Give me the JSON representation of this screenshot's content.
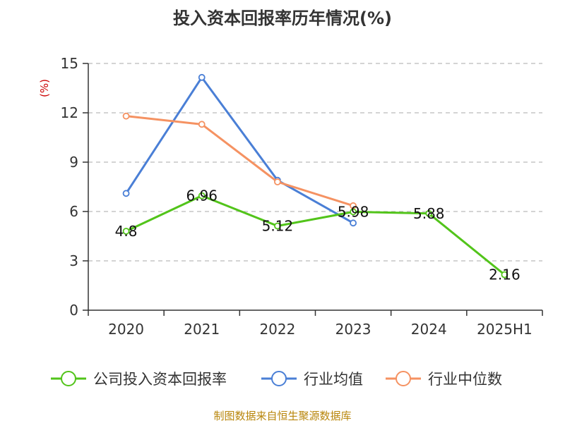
{
  "chart_data": {
    "type": "line",
    "title": "投入资本回报率历年情况(%)",
    "ylabel": "(%)",
    "categories": [
      "2020",
      "2021",
      "2022",
      "2023",
      "2024",
      "2025H1"
    ],
    "yticks": [
      "0",
      "3",
      "6",
      "9",
      "12",
      "15"
    ],
    "ylim": [
      0,
      15
    ],
    "grid": true,
    "legend_position": "bottom",
    "series": [
      {
        "name": "公司投入资本回报率",
        "color": "#52c41a",
        "values": [
          4.8,
          6.96,
          5.12,
          5.98,
          5.88,
          2.16
        ],
        "labels": [
          "4.8",
          "6.96",
          "5.12",
          "5.98",
          "5.88",
          "2.16"
        ]
      },
      {
        "name": "行业均值",
        "color": "#4a7fd6",
        "values": [
          7.1,
          14.15,
          7.9,
          5.3,
          null,
          null
        ]
      },
      {
        "name": "行业中位数",
        "color": "#f59262",
        "values": [
          11.8,
          11.3,
          7.8,
          6.35,
          null,
          null
        ]
      }
    ]
  },
  "source": "制图数据来自恒生聚源数据库"
}
